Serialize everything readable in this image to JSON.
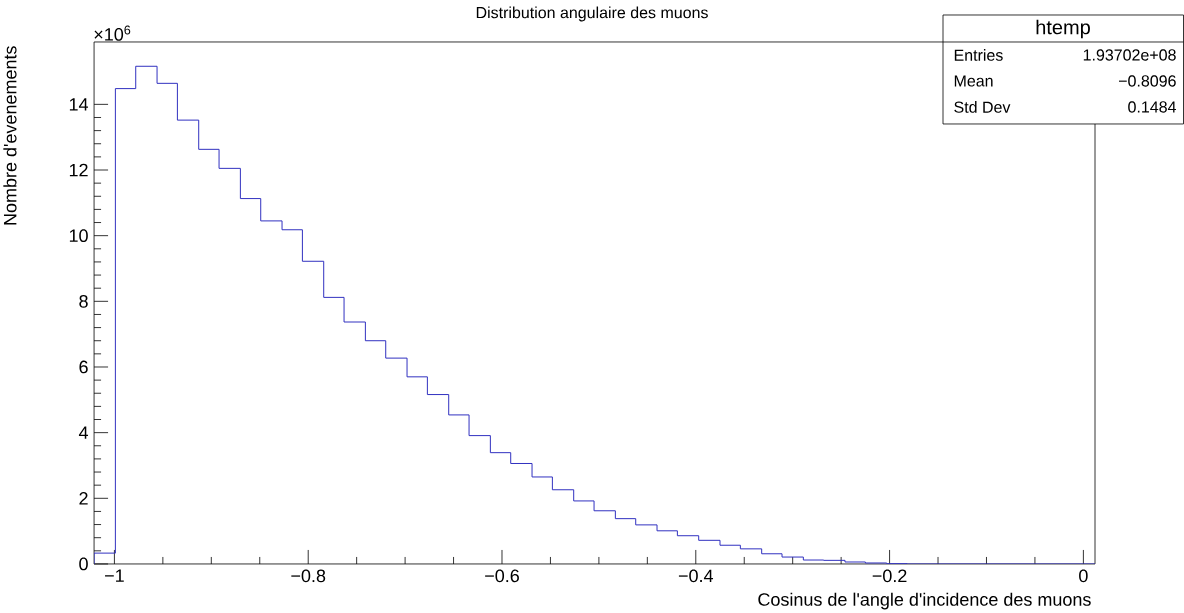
{
  "chart_data": {
    "type": "histogram",
    "title": "Distribution angulaire des muons",
    "xlabel": "Cosinus de l'angle d'incidence des muons",
    "ylabel": "Nombre d'evenements",
    "bins": [
      -1.021,
      -0.999,
      -0.978,
      -0.956,
      -0.935,
      -0.913,
      -0.892,
      -0.87,
      -0.849,
      -0.827,
      -0.806,
      -0.784,
      -0.763,
      -0.741,
      -0.72,
      -0.698,
      -0.677,
      -0.655,
      -0.634,
      -0.612,
      -0.591,
      -0.569,
      -0.548,
      -0.526,
      -0.505,
      -0.483,
      -0.462,
      -0.44,
      -0.419,
      -0.397,
      -0.375,
      -0.354,
      -0.332,
      -0.311,
      -0.289,
      -0.268,
      -0.246,
      -0.225,
      -0.203,
      -0.182,
      -0.16,
      -0.139,
      -0.117,
      -0.096,
      -0.074,
      -0.053,
      -0.031,
      -0.01,
      0.012
    ],
    "values": [
      0.33,
      14.48,
      15.16,
      14.64,
      13.52,
      12.63,
      12.05,
      11.13,
      10.45,
      10.18,
      9.22,
      8.12,
      7.37,
      6.8,
      6.27,
      5.7,
      5.16,
      4.54,
      3.91,
      3.39,
      3.06,
      2.65,
      2.26,
      1.92,
      1.62,
      1.38,
      1.19,
      1.01,
      0.86,
      0.72,
      0.57,
      0.46,
      0.31,
      0.21,
      0.12,
      0.11,
      0.06,
      0.03,
      0.01,
      0,
      0,
      0,
      0,
      0,
      0,
      0,
      0,
      0
    ],
    "color": "#3030c0",
    "xlim": [
      -1.021,
      0.012
    ],
    "ylim": [
      0,
      15.9
    ],
    "xticks": [
      {
        "value": -1,
        "label": "−1"
      },
      {
        "value": -0.8,
        "label": "−0.8"
      },
      {
        "value": -0.6,
        "label": "−0.6"
      },
      {
        "value": -0.4,
        "label": "−0.4"
      },
      {
        "value": -0.2,
        "label": "−0.2"
      },
      0
    ],
    "yticks": [
      0,
      2,
      4,
      6,
      8,
      10,
      12,
      14
    ],
    "grid": false,
    "annotations": [
      "×10$^{6}$",
      "htemp",
      "Entries",
      "1.93702e+08",
      "Mean",
      "−0.8096",
      "Std Dev",
      "0.1484"
    ]
  }
}
